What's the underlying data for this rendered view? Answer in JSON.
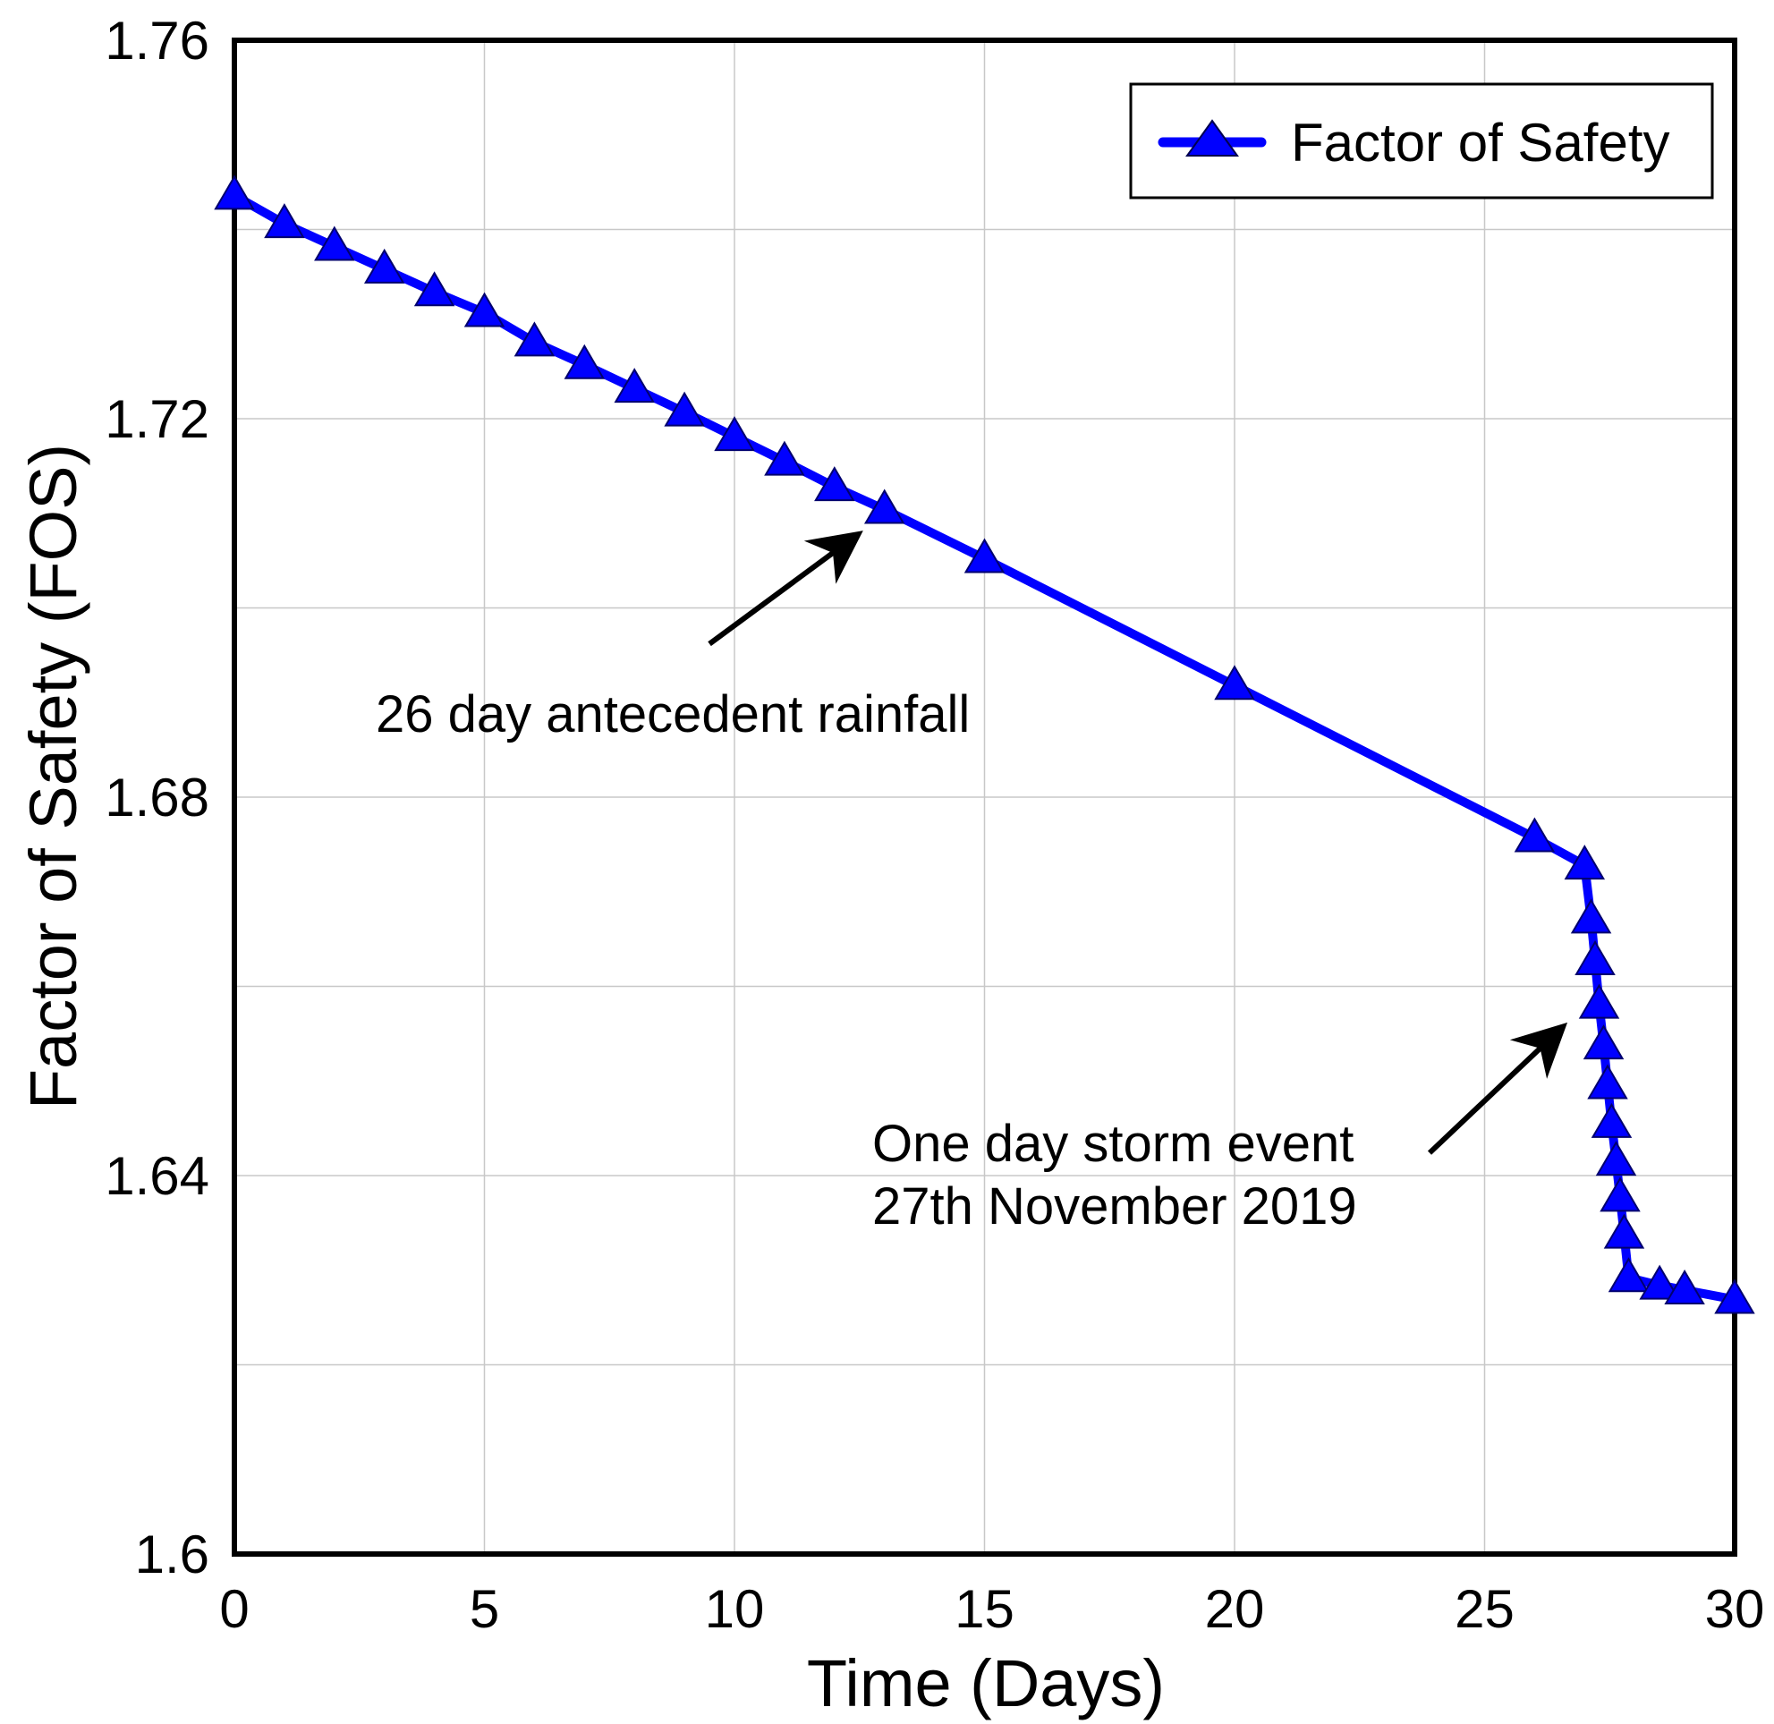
{
  "chart_data": {
    "type": "line",
    "title": "",
    "xlabel": "Time (Days)",
    "ylabel": "Factor of Safety (FOS)",
    "xlim": [
      0,
      30
    ],
    "ylim": [
      1.6,
      1.76
    ],
    "x_ticks": [
      "0",
      "5",
      "10",
      "15",
      "20",
      "25",
      "30"
    ],
    "y_ticks": [
      "1.6",
      "1.64",
      "1.68",
      "1.72",
      "1.76"
    ],
    "grid": true,
    "legend_position": "top-right",
    "series": [
      {
        "name": "Factor of Safety",
        "color": "#0000ff",
        "marker": "triangle",
        "points": [
          {
            "x": 0,
            "y": 1.7436
          },
          {
            "x": 1,
            "y": 1.7406
          },
          {
            "x": 2,
            "y": 1.7382
          },
          {
            "x": 3,
            "y": 1.7358
          },
          {
            "x": 4,
            "y": 1.7334
          },
          {
            "x": 5,
            "y": 1.7312
          },
          {
            "x": 6,
            "y": 1.7281
          },
          {
            "x": 7,
            "y": 1.7257
          },
          {
            "x": 8,
            "y": 1.7232
          },
          {
            "x": 9,
            "y": 1.7207
          },
          {
            "x": 10,
            "y": 1.7181
          },
          {
            "x": 11,
            "y": 1.7155
          },
          {
            "x": 12,
            "y": 1.7128
          },
          {
            "x": 13,
            "y": 1.7104
          },
          {
            "x": 15,
            "y": 1.7052
          },
          {
            "x": 20,
            "y": 1.6918
          },
          {
            "x": 26,
            "y": 1.6757
          },
          {
            "x": 27,
            "y": 1.6728
          },
          {
            "x": 27.13,
            "y": 1.6671
          },
          {
            "x": 27.21,
            "y": 1.6627
          },
          {
            "x": 27.29,
            "y": 1.6581
          },
          {
            "x": 27.38,
            "y": 1.6538
          },
          {
            "x": 27.46,
            "y": 1.6496
          },
          {
            "x": 27.54,
            "y": 1.6455
          },
          {
            "x": 27.63,
            "y": 1.6415
          },
          {
            "x": 27.71,
            "y": 1.6377
          },
          {
            "x": 27.79,
            "y": 1.6338
          },
          {
            "x": 27.88,
            "y": 1.6292
          },
          {
            "x": 28.5,
            "y": 1.6284
          },
          {
            "x": 29,
            "y": 1.6279
          },
          {
            "x": 30,
            "y": 1.6269
          }
        ]
      }
    ],
    "annotations": [
      {
        "lines": [
          "26 day antecedent rainfall"
        ],
        "arrow_from": {
          "x": 9.5,
          "y": 1.6962
        },
        "arrow_to": {
          "x": 12.4,
          "y": 1.7075
        }
      },
      {
        "lines": [
          "One day storm event",
          "27th November 2019"
        ],
        "arrow_from": {
          "x": 23.9,
          "y": 1.6424
        },
        "arrow_to": {
          "x": 26.5,
          "y": 1.6554
        }
      }
    ]
  }
}
